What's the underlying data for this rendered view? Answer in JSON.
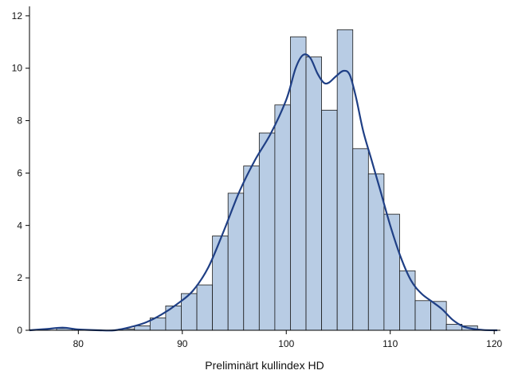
{
  "chart_data": {
    "type": "bar",
    "subtype": "histogram-with-density",
    "xlabel": "Preliminärt kullindex HD",
    "ylabel": "",
    "title": "",
    "xlim": [
      75.3,
      120.6
    ],
    "ylim": [
      0,
      12.3
    ],
    "x_ticks": [
      80,
      90,
      100,
      110,
      120
    ],
    "y_ticks": [
      0,
      2,
      4,
      6,
      8,
      10,
      12
    ],
    "grid": false,
    "legend": "none",
    "bins": [
      {
        "x0": 77.9,
        "x1": 79.4,
        "value": 0.07
      },
      {
        "x0": 83.9,
        "x1": 85.4,
        "value": 0.05
      },
      {
        "x0": 85.4,
        "x1": 86.9,
        "value": 0.17
      },
      {
        "x0": 86.9,
        "x1": 88.4,
        "value": 0.47
      },
      {
        "x0": 88.4,
        "x1": 89.9,
        "value": 0.93
      },
      {
        "x0": 89.9,
        "x1": 91.4,
        "value": 1.4
      },
      {
        "x0": 91.4,
        "x1": 92.9,
        "value": 1.73
      },
      {
        "x0": 92.9,
        "x1": 94.4,
        "value": 3.6
      },
      {
        "x0": 94.4,
        "x1": 95.9,
        "value": 5.23
      },
      {
        "x0": 95.9,
        "x1": 97.4,
        "value": 6.27
      },
      {
        "x0": 97.4,
        "x1": 98.9,
        "value": 7.53
      },
      {
        "x0": 98.9,
        "x1": 100.4,
        "value": 8.6
      },
      {
        "x0": 100.4,
        "x1": 101.9,
        "value": 11.2
      },
      {
        "x0": 101.9,
        "x1": 103.4,
        "value": 10.43
      },
      {
        "x0": 103.4,
        "x1": 104.9,
        "value": 8.4
      },
      {
        "x0": 104.9,
        "x1": 106.4,
        "value": 11.47
      },
      {
        "x0": 106.4,
        "x1": 107.9,
        "value": 6.93
      },
      {
        "x0": 107.9,
        "x1": 109.4,
        "value": 5.97
      },
      {
        "x0": 109.4,
        "x1": 110.9,
        "value": 4.43
      },
      {
        "x0": 110.9,
        "x1": 112.4,
        "value": 2.27
      },
      {
        "x0": 112.4,
        "x1": 113.9,
        "value": 1.13
      },
      {
        "x0": 113.9,
        "x1": 115.4,
        "value": 1.1
      },
      {
        "x0": 115.4,
        "x1": 116.9,
        "value": 0.23
      },
      {
        "x0": 116.9,
        "x1": 118.4,
        "value": 0.17
      }
    ],
    "density_curve": {
      "x": [
        75.3,
        77,
        78.5,
        80,
        82,
        83.5,
        85,
        86.5,
        88,
        89.5,
        91,
        92.5,
        94,
        95.5,
        97,
        98.5,
        100,
        100.9,
        101.6,
        102.3,
        103,
        103.6,
        104.1,
        104.8,
        105.5,
        106.1,
        106.7,
        107.4,
        108.2,
        109,
        110,
        111,
        112,
        113,
        114,
        115,
        116,
        117,
        118,
        119,
        120.3
      ],
      "y": [
        0,
        0.05,
        0.1,
        0.03,
        0,
        0,
        0.12,
        0.3,
        0.6,
        1.0,
        1.5,
        2.4,
        3.8,
        5.3,
        6.5,
        7.5,
        8.8,
        10.0,
        10.5,
        10.4,
        9.8,
        9.45,
        9.45,
        9.7,
        9.9,
        9.75,
        8.9,
        7.6,
        6.5,
        5.4,
        4.0,
        2.8,
        1.9,
        1.4,
        1.1,
        0.8,
        0.4,
        0.15,
        0.05,
        0.01,
        0
      ]
    },
    "colors": {
      "bar_fill": "#b8cce4",
      "bar_stroke": "#1a1a1a",
      "curve": "#1f3f85",
      "axis": "#000000"
    }
  }
}
